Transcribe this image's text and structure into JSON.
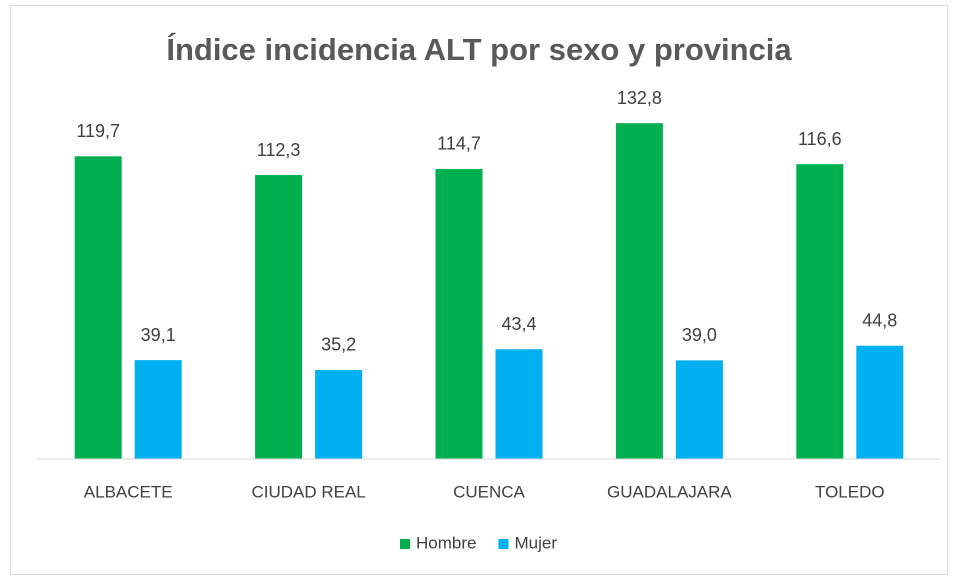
{
  "chart_data": {
    "type": "bar",
    "title": "Índice incidencia ALT por sexo y provincia",
    "categories": [
      "ALBACETE",
      "CIUDAD REAL",
      "CUENCA",
      "GUADALAJARA",
      "TOLEDO"
    ],
    "series": [
      {
        "name": "Hombre",
        "color": "#00b050",
        "values": [
          119.7,
          112.3,
          114.7,
          132.8,
          116.6
        ],
        "value_labels": [
          "119,7",
          "112,3",
          "114,7",
          "132,8",
          "116,6"
        ]
      },
      {
        "name": "Mujer",
        "color": "#00b0f0",
        "values": [
          39.1,
          35.2,
          43.4,
          39.0,
          44.8
        ],
        "value_labels": [
          "39,1",
          "35,2",
          "43,4",
          "39,0",
          "44,8"
        ]
      }
    ],
    "ylim": [
      0,
      140
    ],
    "legend": "bottom"
  }
}
